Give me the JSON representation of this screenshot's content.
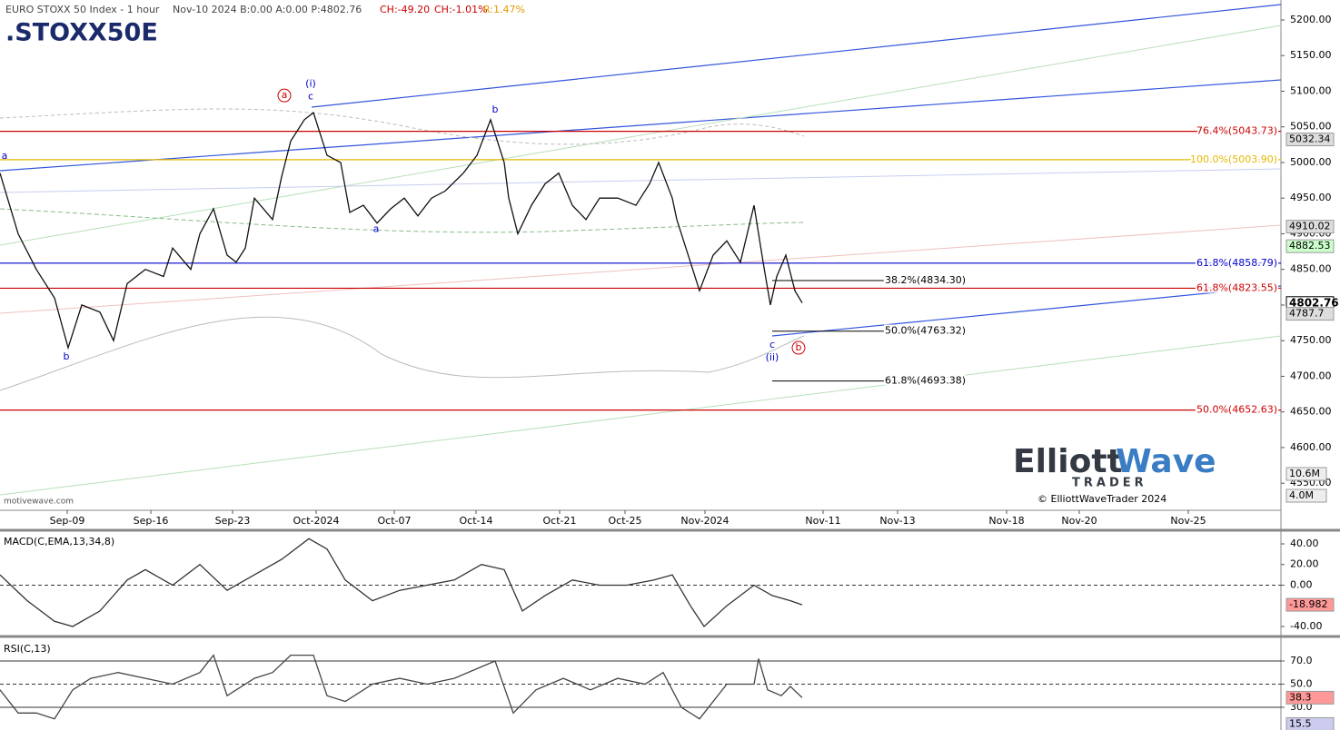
{
  "header": {
    "instrument": "EURO STOXX 50 Index - 1 hour",
    "quote": "Nov-10 2024  B:0.00  A:0.00  P:4802.76",
    "change": "CH:-49.20",
    "change_pct": "CH:-1.01%",
    "range": "R:1.47%",
    "symbol": ".STOXX50E",
    "source": "motivewave.com"
  },
  "logo": {
    "word1": "Elliott",
    "word2": "Wave",
    "word3": "TRADER",
    "copyright": "© ElliottWaveTrader 2024"
  },
  "chart_data": [
    {
      "type": "line",
      "xlim": [
        0,
        705
      ],
      "ylim": [
        4512,
        5228
      ],
      "xticks": [
        {
          "value": 37,
          "label": "Sep-09"
        },
        {
          "value": 83,
          "label": "Sep-16"
        },
        {
          "value": 128,
          "label": "Sep-23"
        },
        {
          "value": 174,
          "label": "Oct-2024"
        },
        {
          "value": 217,
          "label": "Oct-07"
        },
        {
          "value": 262,
          "label": "Oct-14"
        },
        {
          "value": 308,
          "label": "Oct-21"
        },
        {
          "value": 344,
          "label": "Oct-25"
        },
        {
          "value": 388,
          "label": "Nov-2024"
        },
        {
          "value": 453,
          "label": "Nov-11"
        },
        {
          "value": 494,
          "label": "Nov-13"
        },
        {
          "value": 554,
          "label": "Nov-18"
        },
        {
          "value": 594,
          "label": "Nov-20"
        },
        {
          "value": 654,
          "label": "Nov-25"
        }
      ],
      "yticks": [
        {
          "value": 4550,
          "label": "4550.00"
        },
        {
          "value": 4600,
          "label": "4600.00"
        },
        {
          "value": 4650,
          "label": "4650.00"
        },
        {
          "value": 4700,
          "label": "4700.00"
        },
        {
          "value": 4750,
          "label": "4750.00"
        },
        {
          "value": 4800,
          "label": "4800.00"
        },
        {
          "value": 4850,
          "label": "4850.00"
        },
        {
          "value": 4900,
          "label": "4900.00"
        },
        {
          "value": 4950,
          "label": "4950.00"
        },
        {
          "value": 5000,
          "label": "5000.00"
        },
        {
          "value": 5050,
          "label": "5050.00"
        },
        {
          "value": 5100,
          "label": "5100.00"
        },
        {
          "value": 5150,
          "label": "5150.00"
        },
        {
          "value": 5200,
          "label": "5200.00"
        }
      ],
      "x": [
        0,
        10,
        20,
        30,
        37.5,
        45,
        55,
        62.5,
        70,
        80,
        90,
        95,
        105,
        110,
        117.5,
        125,
        130,
        135,
        140,
        150,
        155,
        160,
        167.5,
        172.5,
        180,
        187.5,
        192.5,
        200,
        207.5,
        215,
        222.5,
        230,
        237.5,
        245,
        255,
        262.5,
        270,
        277.5,
        280,
        285,
        292.5,
        300,
        307.5,
        315,
        322.5,
        330,
        340,
        350,
        357.5,
        362.5,
        370,
        372.5,
        380,
        385,
        392.5,
        400,
        407.5,
        415,
        420,
        424,
        427.5,
        432.5,
        437.5,
        441.5
      ],
      "series": [
        {
          "color": "#111111",
          "values": [
            4985,
            4900,
            4850,
            4810,
            4740,
            4800,
            4790,
            4750,
            4830,
            4850,
            4840,
            4880,
            4850,
            4900,
            4935,
            4870,
            4860,
            4880,
            4950,
            4920,
            4980,
            5030,
            5060,
            5070,
            5010,
            5000,
            4930,
            4940,
            4915,
            4935,
            4950,
            4925,
            4950,
            4960,
            4985,
            5010,
            5060,
            5000,
            4950,
            4900,
            4940,
            4970,
            4985,
            4940,
            4920,
            4950,
            4950,
            4940,
            4970,
            5000,
            4950,
            4920,
            4860,
            4820,
            4870,
            4890,
            4860,
            4940,
            4860,
            4800,
            4840,
            4870,
            4820,
            4803
          ]
        }
      ],
      "fib_levels": [
        {
          "label": "76.4%(5043.73)",
          "value": 5043.73,
          "color": "#cc0000"
        },
        {
          "label": "100.0%(5003.90)",
          "value": 5003.9,
          "color": "#e6b800"
        },
        {
          "label": "61.8%(4858.79)",
          "value": 4858.79,
          "color": "#0000cc"
        },
        {
          "label": "61.8%(4823.55)",
          "value": 4823.55,
          "color": "#cc0000"
        },
        {
          "label": "50.0%(4652.63)",
          "value": 4652.63,
          "color": "#cc0000"
        }
      ],
      "fib_projections": [
        {
          "label": "38.2%(4834.30)",
          "value": 4834.3
        },
        {
          "label": "50.0%(4763.32)",
          "value": 4763.32
        },
        {
          "label": "61.8%(4693.38)",
          "value": 4693.38
        }
      ],
      "wave_labels": [
        {
          "text": "a",
          "x": 2.5,
          "y": 5009,
          "color": "#0000cc"
        },
        {
          "text": "b",
          "x": 36.5,
          "y": 4727,
          "color": "#0000cc"
        },
        {
          "text": "a",
          "x": 156.5,
          "y": 5094,
          "color": "#cc0000",
          "circled": true
        },
        {
          "text": "(i)",
          "x": 171,
          "y": 5110,
          "color": "#0000cc"
        },
        {
          "text": "c",
          "x": 171,
          "y": 5092,
          "color": "#0000cc"
        },
        {
          "text": "a",
          "x": 207,
          "y": 4906,
          "color": "#0000cc"
        },
        {
          "text": "b",
          "x": 272.5,
          "y": 5074,
          "color": "#0000cc"
        },
        {
          "text": "c",
          "x": 425,
          "y": 4744,
          "color": "#0000cc"
        },
        {
          "text": "(ii)",
          "x": 425,
          "y": 4726,
          "color": "#0000cc"
        },
        {
          "text": "b",
          "x": 439.5,
          "y": 4740,
          "color": "#cc0000",
          "circled": true
        }
      ],
      "price_labels": [
        {
          "value": 5032.34,
          "color": "#dddddd"
        },
        {
          "value": 4910.02,
          "color": "#dddddd"
        },
        {
          "value": 4882.53,
          "color": "#ccffcc"
        },
        {
          "value": 4802.76,
          "color": "#ffffff",
          "bold": true
        },
        {
          "value": 4787.7,
          "color": "#dddddd"
        }
      ],
      "volume_labels": [
        "10.6M",
        "4.0M"
      ]
    },
    {
      "type": "line",
      "title": "MACD(C,EMA,13,34,8)",
      "xlim": [
        0,
        705
      ],
      "ylim": [
        -48.8,
        52.3
      ],
      "zero_line": true,
      "yticks": [
        {
          "value": 40,
          "label": "40.00"
        },
        {
          "value": 20,
          "label": "20.00"
        },
        {
          "value": 0,
          "label": "0.00"
        },
        {
          "value": -40,
          "label": "-40.00"
        }
      ],
      "x": [
        0,
        15,
        30,
        40,
        55,
        70,
        80,
        95,
        110,
        125,
        140,
        155,
        170,
        180,
        190,
        205,
        220,
        235,
        250,
        265,
        277.5,
        287.5,
        300,
        315,
        330,
        345,
        360,
        370,
        380,
        387.5,
        400,
        415,
        425,
        435,
        441.5
      ],
      "series": [
        {
          "color": "#333333",
          "values": [
            10,
            -15,
            -35,
            -40,
            -25,
            5,
            15,
            0,
            20,
            -5,
            10,
            25,
            45,
            35,
            5,
            -15,
            -5,
            0,
            5,
            20,
            15,
            -25,
            -10,
            5,
            0,
            0,
            5,
            10,
            -20,
            -40,
            -20,
            0,
            -10,
            -15,
            -18.982
          ]
        }
      ],
      "value_boxes": [
        {
          "value": -18.982,
          "color": "#ff9999"
        }
      ]
    },
    {
      "type": "line",
      "title": "RSI(C,13)",
      "xlim": [
        0,
        705
      ],
      "ylim": [
        13.5,
        89.6
      ],
      "grid": true,
      "yticks": [
        {
          "value": 70,
          "label": "70.0"
        },
        {
          "value": 50,
          "label": "50.0"
        },
        {
          "value": 30,
          "label": "30.0"
        }
      ],
      "x": [
        0,
        10,
        20,
        30,
        40,
        50,
        65,
        80,
        95,
        110,
        117.5,
        125,
        140,
        150,
        160,
        172.5,
        180,
        190,
        205,
        220,
        235,
        250,
        265,
        272.5,
        282.5,
        295,
        310,
        325,
        340,
        355,
        365,
        375,
        385,
        400,
        415,
        417.5,
        422.5,
        430,
        435,
        441.5
      ],
      "series": [
        {
          "color": "#444444",
          "values": [
            45,
            25,
            25,
            20,
            45,
            55,
            60,
            55,
            50,
            60,
            75,
            40,
            55,
            60,
            75,
            75,
            40,
            35,
            50,
            55,
            50,
            55,
            65,
            70,
            25,
            45,
            55,
            45,
            55,
            50,
            60,
            30,
            20,
            50,
            50,
            72,
            45,
            40,
            48,
            38.3
          ]
        }
      ],
      "value_boxes": [
        {
          "value": 38.3,
          "color": "#ff9999"
        },
        {
          "value": 15.5,
          "color": "#ccccee"
        }
      ]
    }
  ]
}
